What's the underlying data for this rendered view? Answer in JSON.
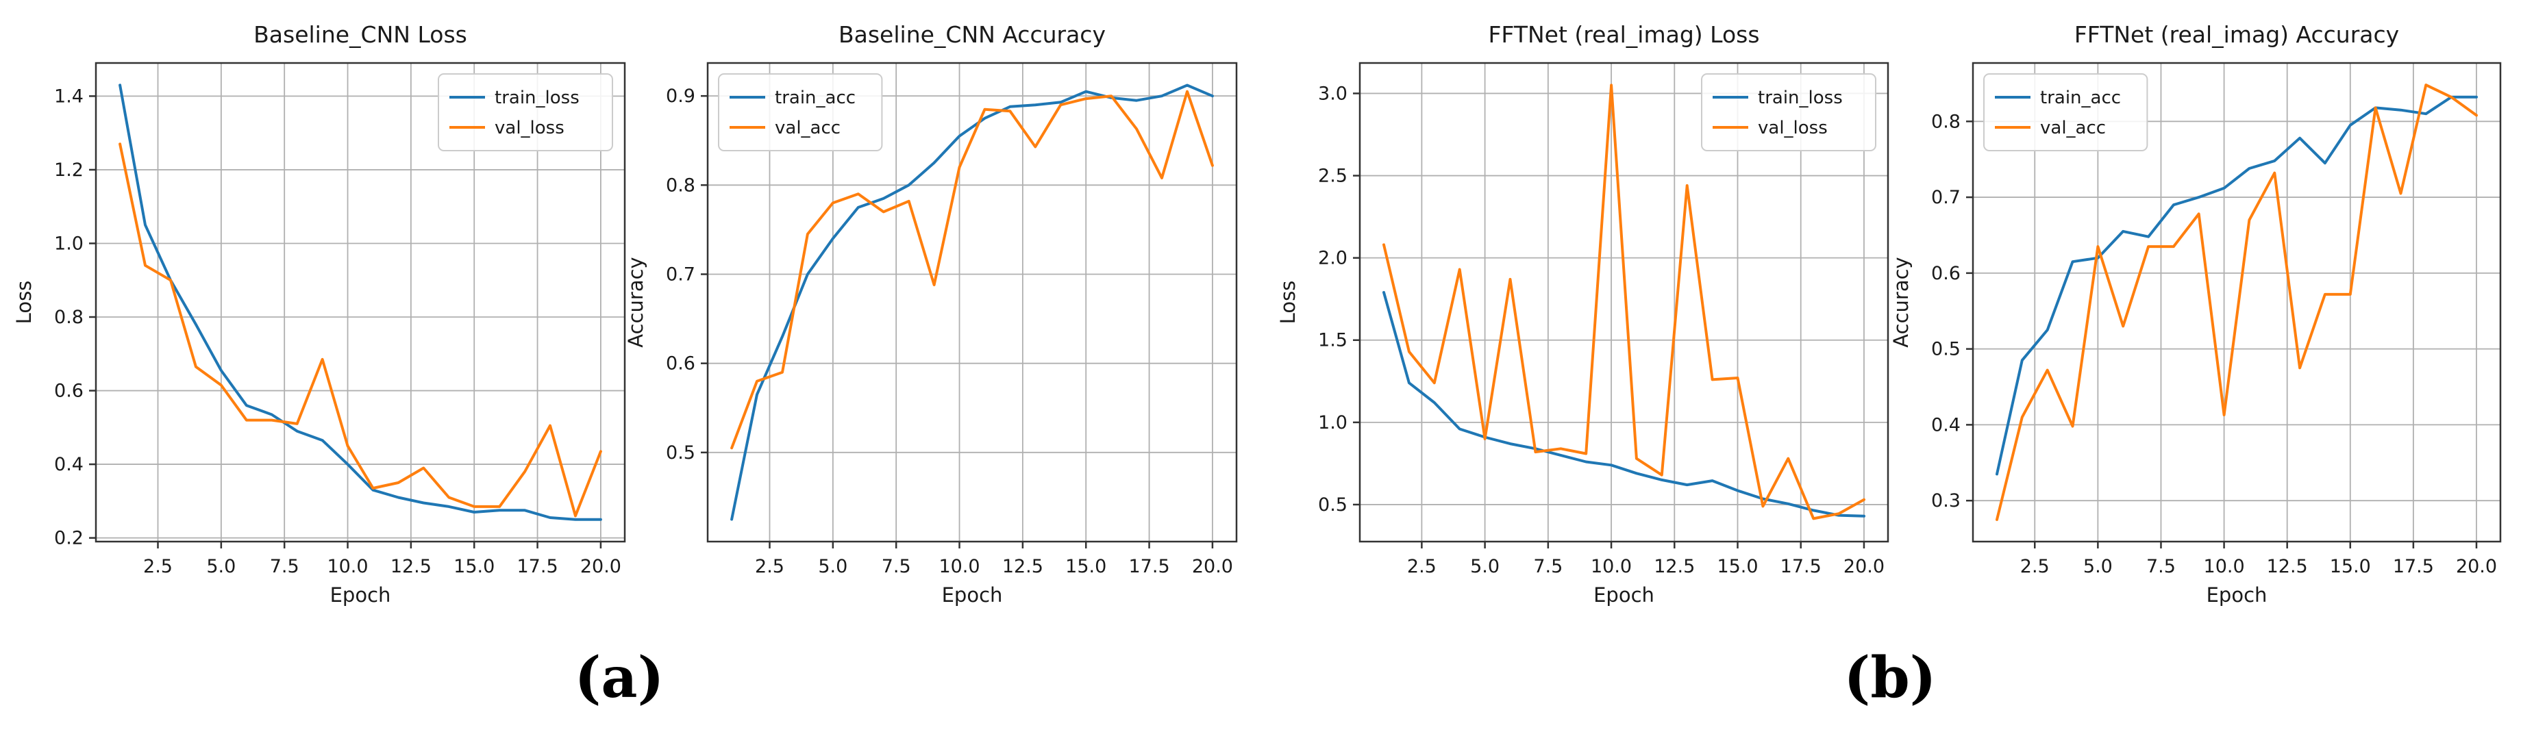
{
  "figure": {
    "captions": [
      {
        "label": "(a)"
      },
      {
        "label": "(b)"
      }
    ],
    "colors": {
      "train": "#1f77b4",
      "val": "#ff7f0e",
      "grid": "#b0b0b0",
      "spine": "#333333",
      "text": "#1a1a1a",
      "legend_border": "#cccccc",
      "background": "#ffffff"
    }
  },
  "chart_data": [
    {
      "type": "line",
      "title": "Baseline_CNN Loss",
      "xlabel": "Epoch",
      "ylabel": "Loss",
      "grid": true,
      "legend_position": "upper right",
      "x": [
        1,
        2,
        3,
        4,
        5,
        6,
        7,
        8,
        9,
        10,
        11,
        12,
        13,
        14,
        15,
        16,
        17,
        18,
        19,
        20
      ],
      "xlim": [
        0.05,
        20.95
      ],
      "ylim": [
        0.19,
        1.49
      ],
      "xticks": [
        2.5,
        5.0,
        7.5,
        10.0,
        12.5,
        15.0,
        17.5,
        20.0
      ],
      "xtick_labels": [
        "2.5",
        "5.0",
        "7.5",
        "10.0",
        "12.5",
        "15.0",
        "17.5",
        "20.0"
      ],
      "yticks": [
        0.2,
        0.4,
        0.6,
        0.8,
        1.0,
        1.2,
        1.4
      ],
      "ytick_labels": [
        "0.2",
        "0.4",
        "0.6",
        "0.8",
        "1.0",
        "1.2",
        "1.4"
      ],
      "series": [
        {
          "name": "train_loss",
          "color_key": "train",
          "values": [
            1.43,
            1.05,
            0.9,
            0.78,
            0.655,
            0.56,
            0.535,
            0.49,
            0.465,
            0.4,
            0.33,
            0.31,
            0.295,
            0.285,
            0.27,
            0.275,
            0.275,
            0.255,
            0.25,
            0.25
          ]
        },
        {
          "name": "val_loss",
          "color_key": "val",
          "values": [
            1.27,
            0.94,
            0.9,
            0.665,
            0.615,
            0.52,
            0.52,
            0.51,
            0.685,
            0.45,
            0.335,
            0.35,
            0.39,
            0.31,
            0.285,
            0.285,
            0.38,
            0.505,
            0.26,
            0.435
          ]
        }
      ]
    },
    {
      "type": "line",
      "title": "Baseline_CNN Accuracy",
      "xlabel": "Epoch",
      "ylabel": "Accuracy",
      "grid": true,
      "legend_position": "upper left",
      "x": [
        1,
        2,
        3,
        4,
        5,
        6,
        7,
        8,
        9,
        10,
        11,
        12,
        13,
        14,
        15,
        16,
        17,
        18,
        19,
        20
      ],
      "xlim": [
        0.05,
        20.95
      ],
      "ylim": [
        0.4,
        0.937
      ],
      "xticks": [
        2.5,
        5.0,
        7.5,
        10.0,
        12.5,
        15.0,
        17.5,
        20.0
      ],
      "xtick_labels": [
        "2.5",
        "5.0",
        "7.5",
        "10.0",
        "12.5",
        "15.0",
        "17.5",
        "20.0"
      ],
      "yticks": [
        0.5,
        0.6,
        0.7,
        0.8,
        0.9
      ],
      "ytick_labels": [
        "0.5",
        "0.6",
        "0.7",
        "0.8",
        "0.9"
      ],
      "series": [
        {
          "name": "train_acc",
          "color_key": "train",
          "values": [
            0.425,
            0.565,
            0.63,
            0.7,
            0.74,
            0.775,
            0.785,
            0.8,
            0.825,
            0.855,
            0.875,
            0.888,
            0.89,
            0.893,
            0.905,
            0.898,
            0.895,
            0.9,
            0.912,
            0.9
          ]
        },
        {
          "name": "val_acc",
          "color_key": "val",
          "values": [
            0.505,
            0.58,
            0.59,
            0.745,
            0.78,
            0.79,
            0.77,
            0.782,
            0.688,
            0.82,
            0.885,
            0.883,
            0.843,
            0.89,
            0.897,
            0.9,
            0.863,
            0.808,
            0.905,
            0.822
          ]
        }
      ]
    },
    {
      "type": "line",
      "title": "FFTNet (real_imag) Loss",
      "xlabel": "Epoch",
      "ylabel": "Loss",
      "grid": true,
      "legend_position": "upper right",
      "x": [
        1,
        2,
        3,
        4,
        5,
        6,
        7,
        8,
        9,
        10,
        11,
        12,
        13,
        14,
        15,
        16,
        17,
        18,
        19,
        20
      ],
      "xlim": [
        0.05,
        20.95
      ],
      "ylim": [
        0.275,
        3.185
      ],
      "xticks": [
        2.5,
        5.0,
        7.5,
        10.0,
        12.5,
        15.0,
        17.5,
        20.0
      ],
      "xtick_labels": [
        "2.5",
        "5.0",
        "7.5",
        "10.0",
        "12.5",
        "15.0",
        "17.5",
        "20.0"
      ],
      "yticks": [
        0.5,
        1.0,
        1.5,
        2.0,
        2.5,
        3.0
      ],
      "ytick_labels": [
        "0.5",
        "1.0",
        "1.5",
        "2.0",
        "2.5",
        "3.0"
      ],
      "series": [
        {
          "name": "train_loss",
          "color_key": "train",
          "values": [
            1.79,
            1.24,
            1.12,
            0.96,
            0.91,
            0.87,
            0.84,
            0.8,
            0.76,
            0.74,
            0.69,
            0.65,
            0.62,
            0.645,
            0.585,
            0.535,
            0.505,
            0.465,
            0.435,
            0.43
          ]
        },
        {
          "name": "val_loss",
          "color_key": "val",
          "values": [
            2.08,
            1.43,
            1.24,
            1.93,
            0.9,
            1.87,
            0.82,
            0.84,
            0.81,
            3.05,
            0.78,
            0.68,
            2.44,
            1.26,
            1.27,
            0.49,
            0.78,
            0.415,
            0.445,
            0.53
          ]
        }
      ]
    },
    {
      "type": "line",
      "title": "FFTNet (real_imag) Accuracy",
      "xlabel": "Epoch",
      "ylabel": "Accuracy",
      "grid": true,
      "legend_position": "upper left",
      "x": [
        1,
        2,
        3,
        4,
        5,
        6,
        7,
        8,
        9,
        10,
        11,
        12,
        13,
        14,
        15,
        16,
        17,
        18,
        19,
        20
      ],
      "xlim": [
        0.05,
        20.95
      ],
      "ylim": [
        0.246,
        0.877
      ],
      "xticks": [
        2.5,
        5.0,
        7.5,
        10.0,
        12.5,
        15.0,
        17.5,
        20.0
      ],
      "xtick_labels": [
        "2.5",
        "5.0",
        "7.5",
        "10.0",
        "12.5",
        "15.0",
        "17.5",
        "20.0"
      ],
      "yticks": [
        0.3,
        0.4,
        0.5,
        0.6,
        0.7,
        0.8
      ],
      "ytick_labels": [
        "0.3",
        "0.4",
        "0.5",
        "0.6",
        "0.7",
        "0.8"
      ],
      "series": [
        {
          "name": "train_acc",
          "color_key": "train",
          "values": [
            0.335,
            0.485,
            0.525,
            0.615,
            0.62,
            0.655,
            0.648,
            0.69,
            0.7,
            0.712,
            0.738,
            0.748,
            0.778,
            0.745,
            0.795,
            0.818,
            0.815,
            0.81,
            0.832,
            0.832
          ]
        },
        {
          "name": "val_acc",
          "color_key": "val",
          "values": [
            0.275,
            0.41,
            0.472,
            0.398,
            0.635,
            0.53,
            0.635,
            0.635,
            0.678,
            0.413,
            0.67,
            0.732,
            0.475,
            0.572,
            0.572,
            0.818,
            0.705,
            0.848,
            0.832,
            0.808
          ]
        }
      ]
    }
  ]
}
